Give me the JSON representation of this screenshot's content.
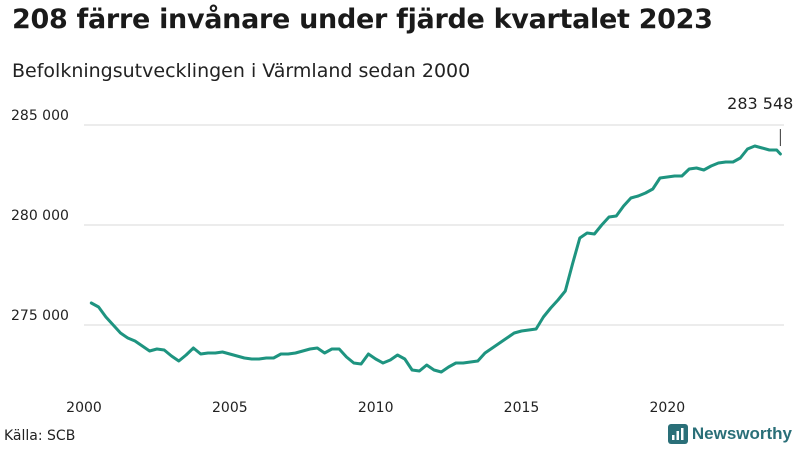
{
  "title": "208 färre invånare under fjärde kvartalet 2023",
  "subtitle": "Befolkningsutvecklingen i Värmland sedan 2000",
  "source": "Källa: SCB",
  "brand": {
    "name": "Newsworthy",
    "icon": "newsworthy-logo-icon",
    "color": "#2a6f78"
  },
  "chart_data": {
    "type": "line",
    "title": "208 färre invånare under fjärde kvartalet 2023",
    "subtitle": "Befolkningsutvecklingen i Värmland sedan 2000",
    "xlabel": "",
    "ylabel": "",
    "xlim": [
      2000,
      2024
    ],
    "ylim": [
      272000,
      286000
    ],
    "grid": true,
    "line_color": "#1e9480",
    "x_ticks": [
      2000,
      2005,
      2010,
      2015,
      2020
    ],
    "x_tick_labels": [
      "2000",
      "2005",
      "2010",
      "2015",
      "2020"
    ],
    "y_ticks": [
      275000,
      280000,
      285000
    ],
    "y_tick_labels": [
      "275 000",
      "280 000",
      "285 000"
    ],
    "annotation": {
      "label": "283 548",
      "x": 2023.875,
      "y": 283548
    },
    "series": [
      {
        "x": [
          2000.25,
          2000.5,
          2000.75,
          2001.0,
          2001.25,
          2001.5,
          2001.75,
          2002.0,
          2002.25,
          2002.5,
          2002.75,
          2003.0,
          2003.25,
          2003.5,
          2003.75,
          2004.0,
          2004.25,
          2004.5,
          2004.75,
          2005.0,
          2005.25,
          2005.5,
          2005.75,
          2006.0,
          2006.25,
          2006.5,
          2006.75,
          2007.0,
          2007.25,
          2007.5,
          2007.75,
          2008.0,
          2008.25,
          2008.5,
          2008.75,
          2009.0,
          2009.25,
          2009.5,
          2009.75,
          2010.0,
          2010.25,
          2010.5,
          2010.75,
          2011.0,
          2011.25,
          2011.5,
          2011.75,
          2012.0,
          2012.25,
          2012.5,
          2012.75,
          2013.0,
          2013.25,
          2013.5,
          2013.75,
          2014.0,
          2014.25,
          2014.5,
          2014.75,
          2015.0,
          2015.25,
          2015.5,
          2015.75,
          2016.0,
          2016.25,
          2016.5,
          2016.75,
          2017.0,
          2017.25,
          2017.5,
          2017.75,
          2018.0,
          2018.25,
          2018.5,
          2018.75,
          2019.0,
          2019.25,
          2019.5,
          2019.75,
          2020.0,
          2020.25,
          2020.5,
          2020.75,
          2021.0,
          2021.25,
          2021.5,
          2021.75,
          2022.0,
          2022.25,
          2022.5,
          2022.75,
          2023.0,
          2023.25,
          2023.5,
          2023.75,
          2023.875
        ],
        "values": [
          276100,
          275900,
          275400,
          275000,
          274600,
          274350,
          274200,
          273950,
          273700,
          273800,
          273750,
          273450,
          273200,
          273500,
          273850,
          273550,
          273600,
          273600,
          273650,
          273550,
          273450,
          273350,
          273300,
          273300,
          273350,
          273350,
          273550,
          273550,
          273600,
          273700,
          273800,
          273850,
          273600,
          273800,
          273800,
          273400,
          273100,
          273050,
          273550,
          273300,
          273100,
          273250,
          273500,
          273300,
          272750,
          272700,
          273000,
          272750,
          272650,
          272900,
          273100,
          273100,
          273150,
          273200,
          273600,
          273850,
          274100,
          274350,
          274600,
          274700,
          274750,
          274800,
          275400,
          275850,
          276250,
          276700,
          278050,
          279350,
          279600,
          279550,
          280000,
          280400,
          280450,
          280950,
          281350,
          281450,
          281600,
          281800,
          282350,
          282400,
          282450,
          282450,
          282800,
          282850,
          282750,
          282950,
          283100,
          283150,
          283150,
          283350,
          283800,
          283950,
          283850,
          283750,
          283750,
          283548
        ]
      }
    ]
  }
}
